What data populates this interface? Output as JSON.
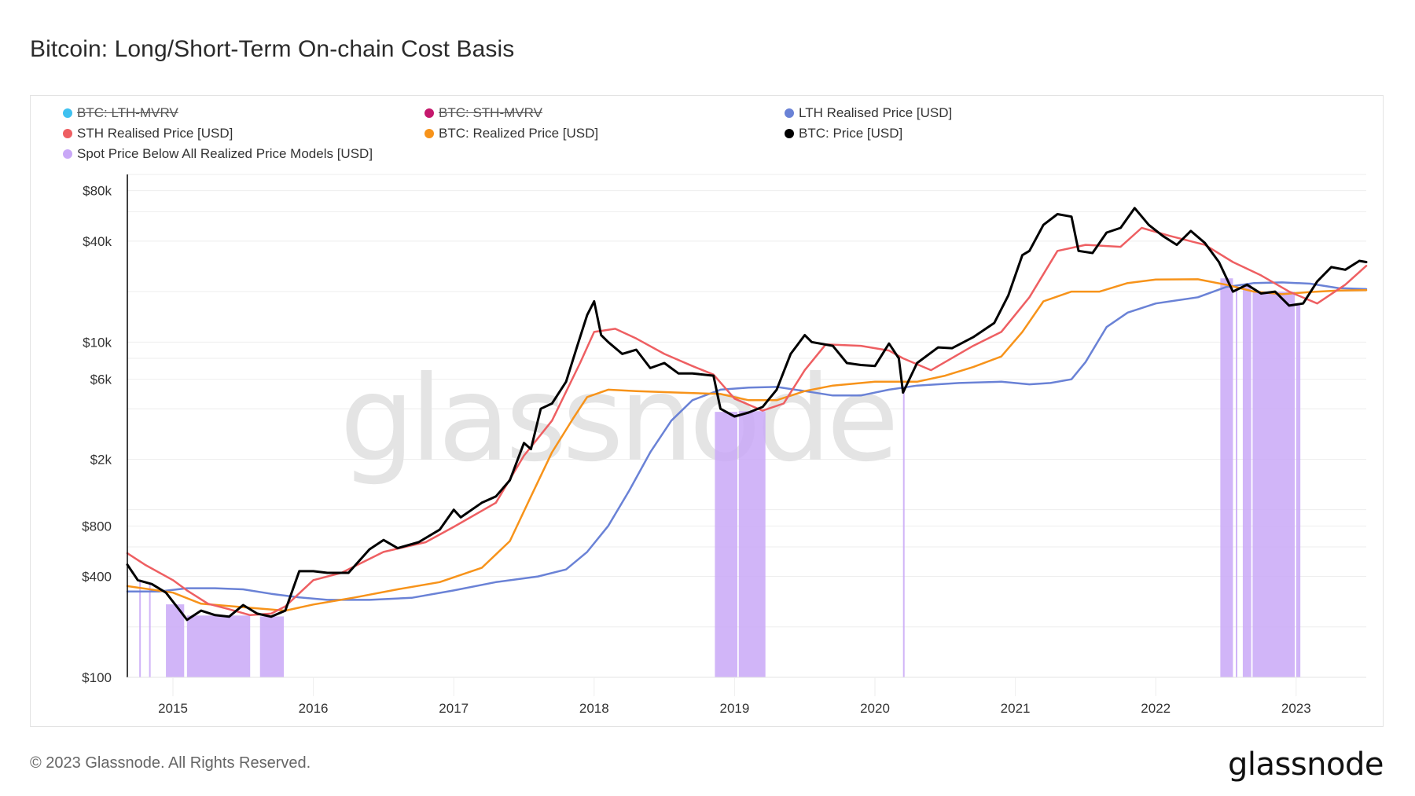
{
  "header": {
    "title": "Bitcoin: Long/Short-Term On-chain Cost Basis"
  },
  "footer": {
    "copyright": "© 2023 Glassnode. All Rights Reserved.",
    "logo": "glassnode"
  },
  "watermark": "glassnode",
  "colors": {
    "lth_mvrv": "#3fc1f0",
    "sth_mvrv": "#c5186d",
    "lth_realised": "#6a82d6",
    "sth_realised": "#ee5f62",
    "realized": "#f7931a",
    "price": "#000000",
    "spot_below": "#c9a8f7",
    "grid": "#eeeeee"
  },
  "legend": [
    {
      "label": "BTC: LTH-MVRV",
      "color_key": "lth_mvrv",
      "disabled": true
    },
    {
      "label": "BTC: STH-MVRV",
      "color_key": "sth_mvrv",
      "disabled": true
    },
    {
      "label": "LTH Realised Price [USD]",
      "color_key": "lth_realised",
      "disabled": false
    },
    {
      "label": "STH Realised Price [USD]",
      "color_key": "sth_realised",
      "disabled": false
    },
    {
      "label": "BTC: Realized Price [USD]",
      "color_key": "realized",
      "disabled": false
    },
    {
      "label": "BTC: Price [USD]",
      "color_key": "price",
      "disabled": false
    },
    {
      "label": "Spot Price Below All Realized Price Models [USD]",
      "color_key": "spot_below",
      "disabled": false
    }
  ],
  "chart_data": {
    "type": "line",
    "title": "Bitcoin: Long/Short-Term On-chain Cost Basis",
    "xlabel": "",
    "ylabel": "",
    "yscale": "log",
    "ylim": [
      100,
      100000
    ],
    "xlim": [
      2014.67,
      2023.52
    ],
    "grid": true,
    "legend_position": "top-left",
    "y_ticks": [
      {
        "value": 100,
        "label": "$100"
      },
      {
        "value": 400,
        "label": "$400"
      },
      {
        "value": 800,
        "label": "$800"
      },
      {
        "value": 2000,
        "label": "$2k"
      },
      {
        "value": 6000,
        "label": "$6k"
      },
      {
        "value": 10000,
        "label": "$10k"
      },
      {
        "value": 40000,
        "label": "$40k"
      },
      {
        "value": 80000,
        "label": "$80k"
      }
    ],
    "y_gridlines": [
      100,
      200,
      400,
      600,
      800,
      1000,
      2000,
      4000,
      6000,
      8000,
      10000,
      20000,
      40000,
      60000,
      80000,
      100000
    ],
    "x_ticks": [
      {
        "value": 2015,
        "label": "2015"
      },
      {
        "value": 2016,
        "label": "2016"
      },
      {
        "value": 2017,
        "label": "2017"
      },
      {
        "value": 2018,
        "label": "2018"
      },
      {
        "value": 2019,
        "label": "2019"
      },
      {
        "value": 2020,
        "label": "2020"
      },
      {
        "value": 2021,
        "label": "2021"
      },
      {
        "value": 2022,
        "label": "2022"
      },
      {
        "value": 2023,
        "label": "2023"
      }
    ],
    "series": [
      {
        "name": "LTH Realised Price [USD]",
        "color_key": "lth_realised",
        "x": [
          2014.67,
          2014.9,
          2015.1,
          2015.3,
          2015.5,
          2015.7,
          2015.9,
          2016.1,
          2016.4,
          2016.7,
          2017.0,
          2017.3,
          2017.6,
          2017.8,
          2017.95,
          2018.1,
          2018.25,
          2018.4,
          2018.55,
          2018.7,
          2018.9,
          2019.1,
          2019.3,
          2019.5,
          2019.7,
          2019.9,
          2020.1,
          2020.3,
          2020.6,
          2020.9,
          2021.1,
          2021.25,
          2021.4,
          2021.5,
          2021.65,
          2021.8,
          2022.0,
          2022.3,
          2022.5,
          2022.7,
          2022.9,
          2023.1,
          2023.3,
          2023.52
        ],
        "values": [
          325,
          325,
          340,
          340,
          335,
          315,
          300,
          290,
          290,
          298,
          330,
          370,
          400,
          440,
          560,
          800,
          1300,
          2200,
          3400,
          4500,
          5200,
          5350,
          5400,
          5100,
          4800,
          4800,
          5200,
          5500,
          5700,
          5800,
          5600,
          5700,
          6000,
          7600,
          12300,
          15000,
          17000,
          18500,
          21300,
          22500,
          22700,
          22300,
          21000,
          20700
        ]
      },
      {
        "name": "STH Realised Price [USD]",
        "color_key": "sth_realised",
        "x": [
          2014.67,
          2014.8,
          2015.0,
          2015.1,
          2015.25,
          2015.4,
          2015.55,
          2015.7,
          2015.8,
          2016.0,
          2016.2,
          2016.5,
          2016.8,
          2017.0,
          2017.3,
          2017.5,
          2017.7,
          2017.9,
          2018.0,
          2018.15,
          2018.3,
          2018.5,
          2018.7,
          2018.85,
          2019.0,
          2019.2,
          2019.35,
          2019.5,
          2019.65,
          2019.9,
          2020.1,
          2020.2,
          2020.4,
          2020.7,
          2020.9,
          2021.1,
          2021.3,
          2021.5,
          2021.75,
          2021.9,
          2022.1,
          2022.35,
          2022.55,
          2022.75,
          2022.95,
          2023.15,
          2023.35,
          2023.52
        ],
        "values": [
          550,
          470,
          380,
          330,
          275,
          255,
          235,
          240,
          265,
          380,
          420,
          560,
          640,
          790,
          1100,
          2100,
          3400,
          7500,
          11500,
          12000,
          10500,
          8500,
          7200,
          6400,
          4600,
          3900,
          4300,
          6800,
          9700,
          9500,
          8900,
          8000,
          6800,
          9500,
          11500,
          18500,
          35000,
          38000,
          37000,
          48000,
          43000,
          38000,
          30000,
          25000,
          20000,
          17000,
          22000,
          28500
        ]
      },
      {
        "name": "BTC: Realized Price [USD]",
        "color_key": "realized",
        "x": [
          2014.67,
          2015.0,
          2015.2,
          2015.5,
          2015.8,
          2016.0,
          2016.3,
          2016.6,
          2016.9,
          2017.2,
          2017.4,
          2017.55,
          2017.7,
          2017.85,
          2017.95,
          2018.1,
          2018.3,
          2018.6,
          2018.9,
          2019.1,
          2019.3,
          2019.5,
          2019.7,
          2020.0,
          2020.3,
          2020.5,
          2020.7,
          2020.9,
          2021.05,
          2021.2,
          2021.4,
          2021.6,
          2021.8,
          2022.0,
          2022.3,
          2022.5,
          2022.7,
          2022.9,
          2023.1,
          2023.3,
          2023.52
        ],
        "values": [
          350,
          320,
          275,
          262,
          250,
          272,
          300,
          335,
          370,
          450,
          650,
          1200,
          2200,
          3500,
          4700,
          5200,
          5100,
          5000,
          4900,
          4500,
          4500,
          5100,
          5500,
          5800,
          5800,
          6300,
          7100,
          8200,
          11500,
          17500,
          20000,
          20000,
          22500,
          23600,
          23700,
          22000,
          20000,
          19300,
          19900,
          20300,
          20400
        ]
      },
      {
        "name": "BTC: Price [USD]",
        "color_key": "price",
        "x": [
          2014.67,
          2014.75,
          2014.85,
          2014.95,
          2015.05,
          2015.1,
          2015.2,
          2015.3,
          2015.4,
          2015.5,
          2015.6,
          2015.7,
          2015.8,
          2015.9,
          2016.0,
          2016.1,
          2016.25,
          2016.4,
          2016.5,
          2016.6,
          2016.75,
          2016.9,
          2017.0,
          2017.05,
          2017.2,
          2017.3,
          2017.4,
          2017.5,
          2017.55,
          2017.62,
          2017.7,
          2017.8,
          2017.88,
          2017.95,
          2018.0,
          2018.05,
          2018.1,
          2018.2,
          2018.3,
          2018.4,
          2018.5,
          2018.6,
          2018.7,
          2018.85,
          2018.9,
          2019.0,
          2019.1,
          2019.2,
          2019.3,
          2019.4,
          2019.5,
          2019.55,
          2019.7,
          2019.8,
          2019.9,
          2020.0,
          2020.1,
          2020.17,
          2020.2,
          2020.3,
          2020.45,
          2020.55,
          2020.7,
          2020.85,
          2020.95,
          2021.05,
          2021.1,
          2021.2,
          2021.3,
          2021.4,
          2021.45,
          2021.55,
          2021.65,
          2021.75,
          2021.85,
          2021.95,
          2022.05,
          2022.15,
          2022.25,
          2022.35,
          2022.45,
          2022.55,
          2022.65,
          2022.75,
          2022.85,
          2022.95,
          2023.05,
          2023.15,
          2023.25,
          2023.35,
          2023.45,
          2023.52
        ],
        "values": [
          470,
          380,
          360,
          320,
          250,
          220,
          250,
          235,
          230,
          270,
          240,
          230,
          250,
          430,
          430,
          420,
          420,
          580,
          660,
          590,
          640,
          760,
          1000,
          900,
          1100,
          1200,
          1500,
          2500,
          2300,
          4000,
          4300,
          5800,
          9500,
          14500,
          17500,
          11000,
          10000,
          8500,
          9000,
          7000,
          7500,
          6500,
          6500,
          6300,
          4000,
          3600,
          3800,
          4100,
          5200,
          8500,
          11000,
          10000,
          9500,
          7500,
          7300,
          7200,
          9800,
          8000,
          5000,
          7500,
          9300,
          9200,
          10700,
          13000,
          19000,
          33000,
          35000,
          50000,
          58000,
          56000,
          35000,
          34000,
          45000,
          48000,
          63000,
          50000,
          43000,
          38000,
          46000,
          39000,
          30000,
          20000,
          22000,
          19500,
          20000,
          16500,
          17000,
          23000,
          28000,
          27000,
          30500,
          30000
        ]
      }
    ],
    "shaded_regions": {
      "name": "Spot Price Below All Realized Price Models [USD]",
      "color_key": "spot_below",
      "ranges": [
        [
          2014.76,
          2014.77
        ],
        [
          2014.83,
          2014.84
        ],
        [
          2014.95,
          2015.08
        ],
        [
          2015.1,
          2015.55
        ],
        [
          2015.62,
          2015.79
        ],
        [
          2018.86,
          2019.02
        ],
        [
          2019.03,
          2019.22
        ],
        [
          2020.2,
          2020.21
        ],
        [
          2022.46,
          2022.55
        ],
        [
          2022.57,
          2022.58
        ],
        [
          2022.62,
          2022.68
        ],
        [
          2022.69,
          2022.99
        ],
        [
          2023.0,
          2023.03
        ]
      ]
    }
  }
}
